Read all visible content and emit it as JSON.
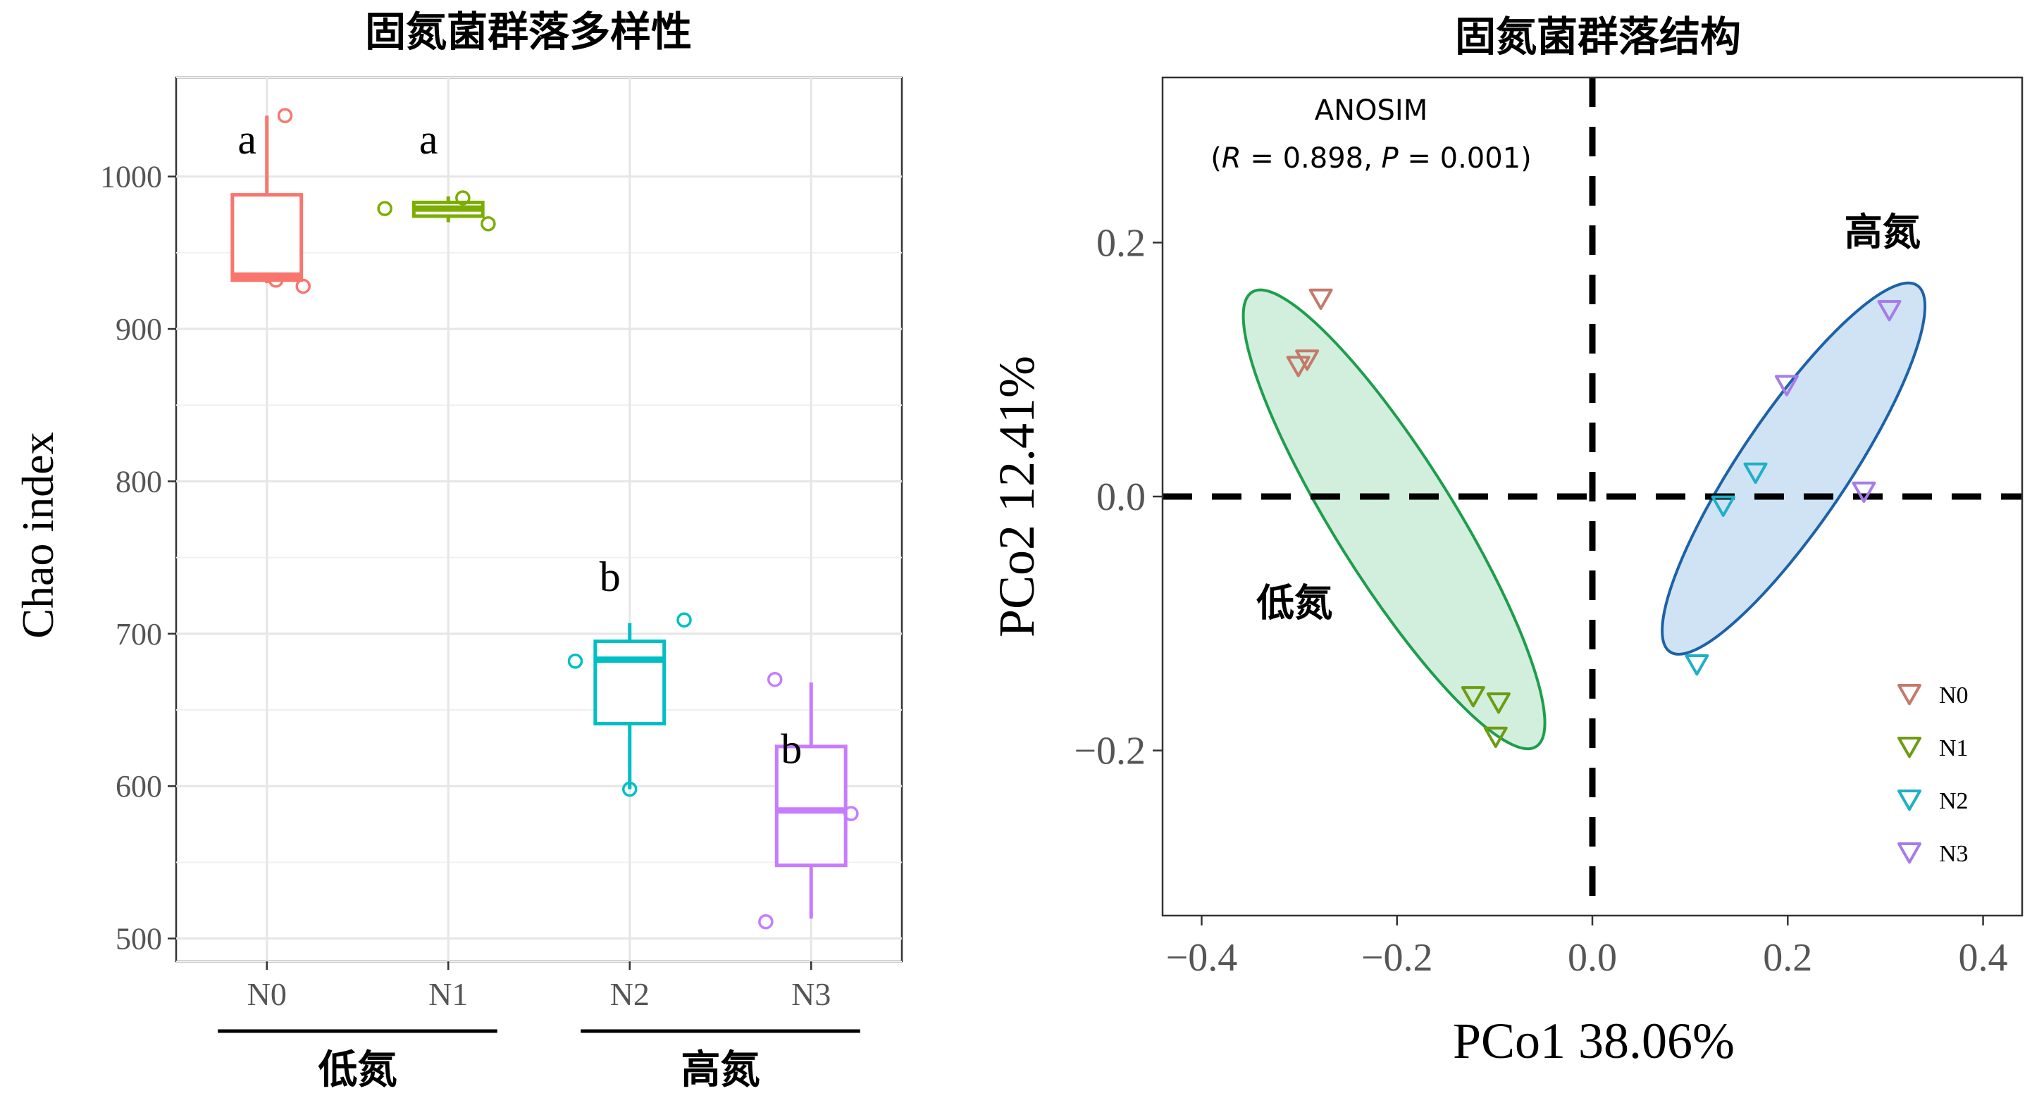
{
  "chart_data": [
    {
      "type": "box",
      "title": "固氮菌群落多样性",
      "ylabel": "Chao index",
      "xlabel": "",
      "ylim": [
        485,
        1065
      ],
      "yticks": [
        500,
        600,
        700,
        800,
        900,
        1000
      ],
      "grid": true,
      "categories": [
        "N0",
        "N1",
        "N2",
        "N3"
      ],
      "colors": {
        "N0": "#F8766D",
        "N1": "#7CAE00",
        "N2": "#00BFC4",
        "N3": "#C77CFF"
      },
      "boxes": [
        {
          "group": "N0",
          "q1": 932,
          "median": 935,
          "q3": 988,
          "whisker_low": 930,
          "whisker_high": 1040
        },
        {
          "group": "N1",
          "q1": 974,
          "median": 979,
          "q3": 983,
          "whisker_low": 970,
          "whisker_high": 987
        },
        {
          "group": "N2",
          "q1": 641,
          "median": 683,
          "q3": 695,
          "whisker_low": 598,
          "whisker_high": 707
        },
        {
          "group": "N3",
          "q1": 548,
          "median": 584,
          "q3": 626,
          "whisker_low": 513,
          "whisker_high": 668
        }
      ],
      "points": [
        {
          "group": "N0",
          "offset": 0.1,
          "y": 1040
        },
        {
          "group": "N0",
          "offset": 0.2,
          "y": 928
        },
        {
          "group": "N0",
          "offset": 0.05,
          "y": 932
        },
        {
          "group": "N1",
          "offset": -0.35,
          "y": 979
        },
        {
          "group": "N1",
          "offset": 0.08,
          "y": 986
        },
        {
          "group": "N1",
          "offset": 0.22,
          "y": 969
        },
        {
          "group": "N2",
          "offset": -0.3,
          "y": 682
        },
        {
          "group": "N2",
          "offset": 0.0,
          "y": 598
        },
        {
          "group": "N2",
          "offset": 0.3,
          "y": 709
        },
        {
          "group": "N3",
          "offset": -0.2,
          "y": 670
        },
        {
          "group": "N3",
          "offset": 0.22,
          "y": 582
        },
        {
          "group": "N3",
          "offset": -0.25,
          "y": 511
        }
      ],
      "significance_letters": [
        {
          "group": "N0",
          "label": "a",
          "y": 1015
        },
        {
          "group": "N1",
          "label": "a",
          "y": 1015
        },
        {
          "group": "N2",
          "label": "b",
          "y": 728
        },
        {
          "group": "N3",
          "label": "b",
          "y": 615
        }
      ],
      "group_brackets": [
        {
          "label": "低氮",
          "from": "N0",
          "to": "N1"
        },
        {
          "label": "高氮",
          "from": "N2",
          "to": "N3"
        }
      ]
    },
    {
      "type": "scatter",
      "title": "固氮菌群落结构",
      "xlabel": "PCo1 38.06%",
      "ylabel": "PCo2 12.41%",
      "xlim": [
        -0.44,
        0.44
      ],
      "ylim": [
        -0.33,
        0.33
      ],
      "xticks": [
        -0.4,
        -0.2,
        0.0,
        0.2,
        0.4
      ],
      "xtick_labels": [
        "−0.4",
        "−0.2",
        "0.0",
        "0.2",
        "0.4"
      ],
      "yticks": [
        -0.2,
        0.0,
        0.2
      ],
      "ytick_labels": [
        "−0.2",
        "0.0",
        "0.2"
      ],
      "grid": false,
      "legend_position": "bottom-right",
      "annotation": {
        "line1": "ANOSIM",
        "r_label": "R",
        "r_text": " = 0.898, ",
        "p_label": "P",
        "p_text": " = 0.001)",
        "open": "("
      },
      "reference_lines": {
        "x": 0.0,
        "y": 0.0
      },
      "series": [
        {
          "name": "N0",
          "color": "#C47A6A",
          "x": [
            -0.278,
            -0.292,
            -0.301
          ],
          "y": [
            0.156,
            0.108,
            0.103
          ]
        },
        {
          "name": "N1",
          "color": "#6E9C12",
          "x": [
            -0.122,
            -0.096,
            -0.099
          ],
          "y": [
            -0.157,
            -0.162,
            -0.189
          ]
        },
        {
          "name": "N2",
          "color": "#1FAFC6",
          "x": [
            0.167,
            0.134,
            0.107
          ],
          "y": [
            0.019,
            -0.007,
            -0.132
          ]
        },
        {
          "name": "N3",
          "color": "#A77BEA",
          "x": [
            0.304,
            0.199,
            0.278
          ],
          "y": [
            0.147,
            0.088,
            0.004
          ]
        }
      ],
      "ellipses": [
        {
          "label": "低氮",
          "fill": "#D2EEDC",
          "stroke": "#1E9E4C",
          "cx": -0.203,
          "cy": -0.018,
          "rx": 0.061,
          "ry": 0.211,
          "tilt_deg": 32,
          "label_x": -0.305,
          "label_y": -0.094
        },
        {
          "label": "高氮",
          "fill": "#CFE3F5",
          "stroke": "#1C62A8",
          "cx": 0.206,
          "cy": 0.022,
          "rx": 0.055,
          "ry": 0.174,
          "tilt_deg": -34,
          "label_x": 0.297,
          "label_y": 0.198
        }
      ]
    }
  ]
}
